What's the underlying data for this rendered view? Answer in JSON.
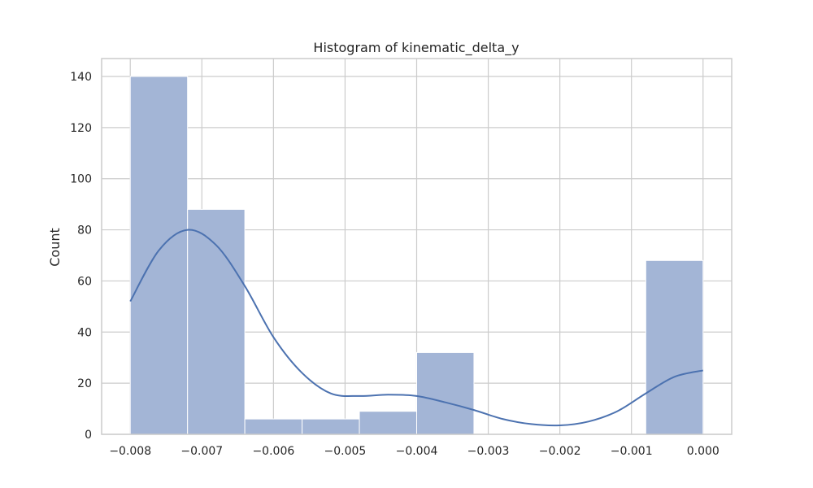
{
  "chart_data": {
    "type": "histogram",
    "title": "Histogram of kinematic_delta_y",
    "xlabel": "",
    "ylabel": "Count",
    "xlim": [
      -0.0084,
      0.0004
    ],
    "ylim": [
      0,
      147
    ],
    "x_ticks": [
      -0.008,
      -0.007,
      -0.006,
      -0.005,
      -0.004,
      -0.003,
      -0.002,
      -0.001,
      0.0
    ],
    "x_tick_labels": [
      "−0.008",
      "−0.007",
      "−0.006",
      "−0.005",
      "−0.004",
      "−0.003",
      "−0.002",
      "−0.001",
      "0.000"
    ],
    "y_ticks": [
      0,
      20,
      40,
      60,
      80,
      100,
      120,
      140
    ],
    "y_tick_labels": [
      "0",
      "20",
      "40",
      "60",
      "80",
      "100",
      "120",
      "140"
    ],
    "grid": true,
    "bins": [
      {
        "x0": -0.008,
        "x1": -0.0072,
        "count": 140
      },
      {
        "x0": -0.0072,
        "x1": -0.0064,
        "count": 88
      },
      {
        "x0": -0.0064,
        "x1": -0.0056,
        "count": 6
      },
      {
        "x0": -0.0056,
        "x1": -0.0048,
        "count": 6
      },
      {
        "x0": -0.0048,
        "x1": -0.004,
        "count": 9
      },
      {
        "x0": -0.004,
        "x1": -0.0032,
        "count": 32
      },
      {
        "x0": -0.0032,
        "x1": -0.0024,
        "count": 0
      },
      {
        "x0": -0.0024,
        "x1": -0.0016,
        "count": 0
      },
      {
        "x0": -0.0016,
        "x1": -0.0008,
        "count": 0
      },
      {
        "x0": -0.0008,
        "x1": 0.0,
        "count": 68
      }
    ],
    "kde": {
      "x": [
        -0.008,
        -0.0076,
        -0.0072,
        -0.0068,
        -0.0064,
        -0.006,
        -0.0056,
        -0.0052,
        -0.0048,
        -0.0044,
        -0.004,
        -0.0036,
        -0.0032,
        -0.0028,
        -0.0024,
        -0.002,
        -0.0016,
        -0.0012,
        -0.0008,
        -0.0004,
        0.0
      ],
      "y": [
        52,
        72,
        80,
        74,
        58,
        38,
        24,
        16,
        15,
        15.5,
        15,
        12.5,
        9.5,
        6,
        4,
        3.5,
        5,
        9,
        16,
        22.5,
        25
      ]
    },
    "colors": {
      "bar": "#a3b5d6",
      "bar_edge": "#ffffff",
      "line": "#4c72b0",
      "grid": "#cccccc",
      "frame": "#cccccc"
    }
  }
}
